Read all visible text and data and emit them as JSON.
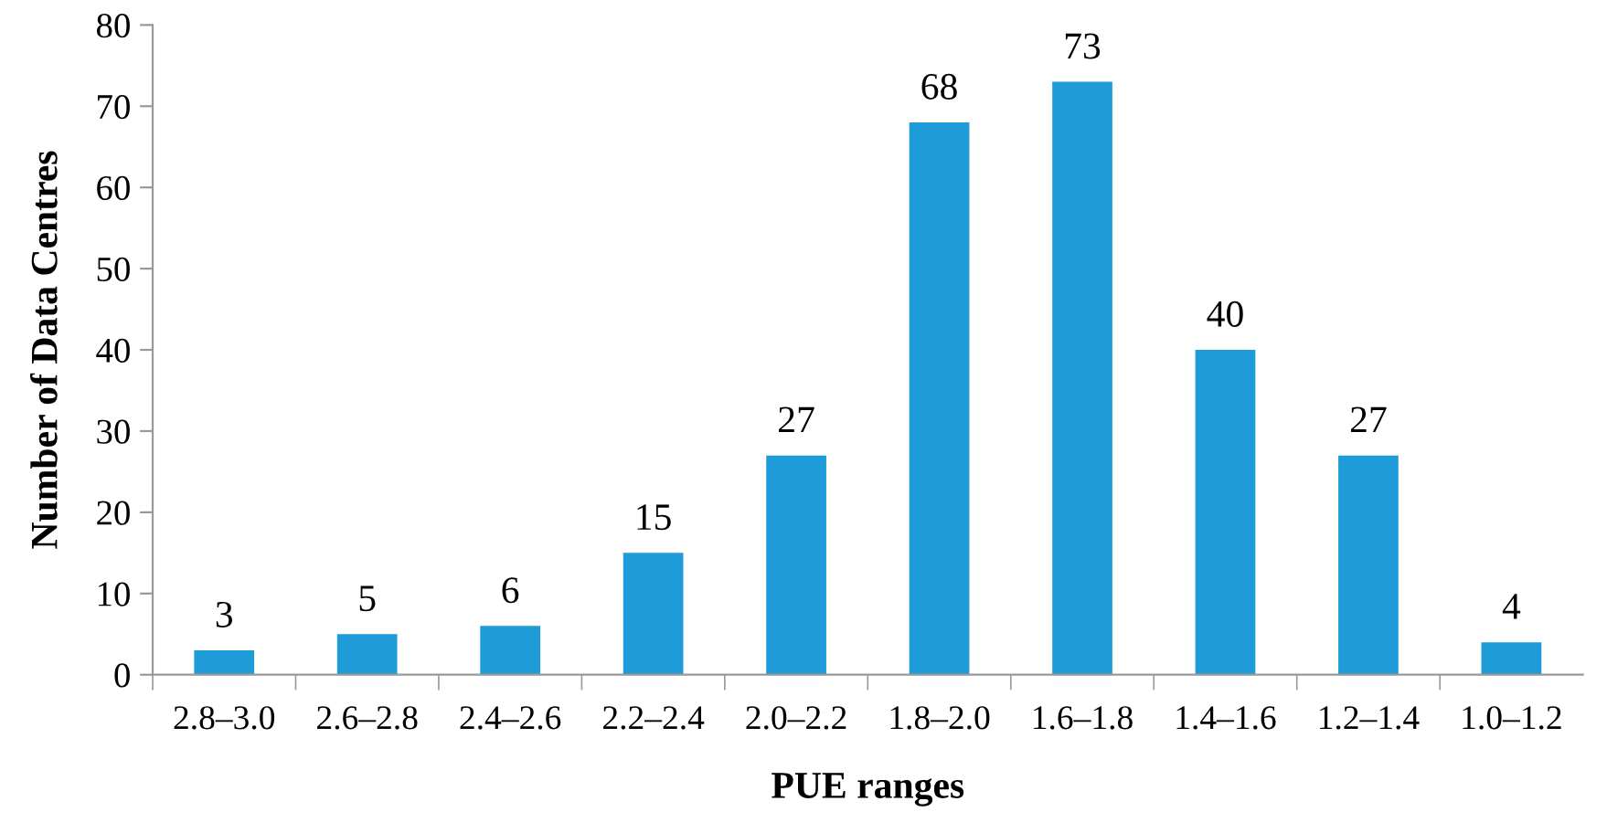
{
  "chart_data": {
    "type": "bar",
    "xlabel": "PUE ranges",
    "ylabel": "Number of Data Centres",
    "categories": [
      "2.8–3.0",
      "2.6–2.8",
      "2.4–2.6",
      "2.2–2.4",
      "2.0–2.2",
      "1.8–2.0",
      "1.6–1.8",
      "1.4–1.6",
      "1.2–1.4",
      "1.0–1.2"
    ],
    "values": [
      3,
      5,
      6,
      15,
      27,
      68,
      73,
      40,
      27,
      4
    ],
    "color": "#1f9bd7",
    "ylim": [
      0,
      80
    ],
    "yticks": [
      0,
      10,
      20,
      30,
      40,
      50,
      60,
      70,
      80
    ],
    "grid": false,
    "legend": false,
    "data_labels": true
  }
}
